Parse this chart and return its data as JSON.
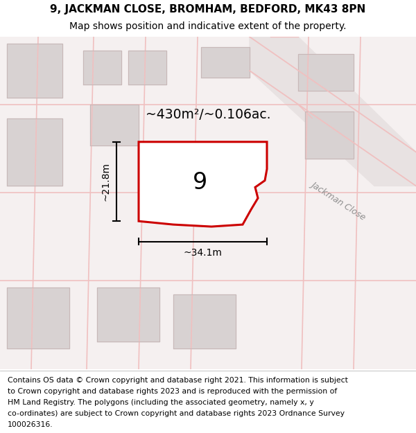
{
  "title_line1": "9, JACKMAN CLOSE, BROMHAM, BEDFORD, MK43 8PN",
  "title_line2": "Map shows position and indicative extent of the property.",
  "footer_lines": [
    "Contains OS data © Crown copyright and database right 2021. This information is subject",
    "to Crown copyright and database rights 2023 and is reproduced with the permission of",
    "HM Land Registry. The polygons (including the associated geometry, namely x, y",
    "co-ordinates) are subject to Crown copyright and database rights 2023 Ordnance Survey",
    "100026316."
  ],
  "area_label": "~430m²/~0.106ac.",
  "width_label": "~34.1m",
  "height_label": "~21.8m",
  "property_number": "9",
  "map_bg": "#f5f0f0",
  "road_color": "#f0c0c0",
  "building_color": "#d8d2d2",
  "building_outline": "#c8b8b8",
  "property_outline_color": "#cc0000",
  "road_label": "Jackman Close",
  "title_fontsize": 11,
  "subtitle_fontsize": 10,
  "footer_fontsize": 7.8
}
